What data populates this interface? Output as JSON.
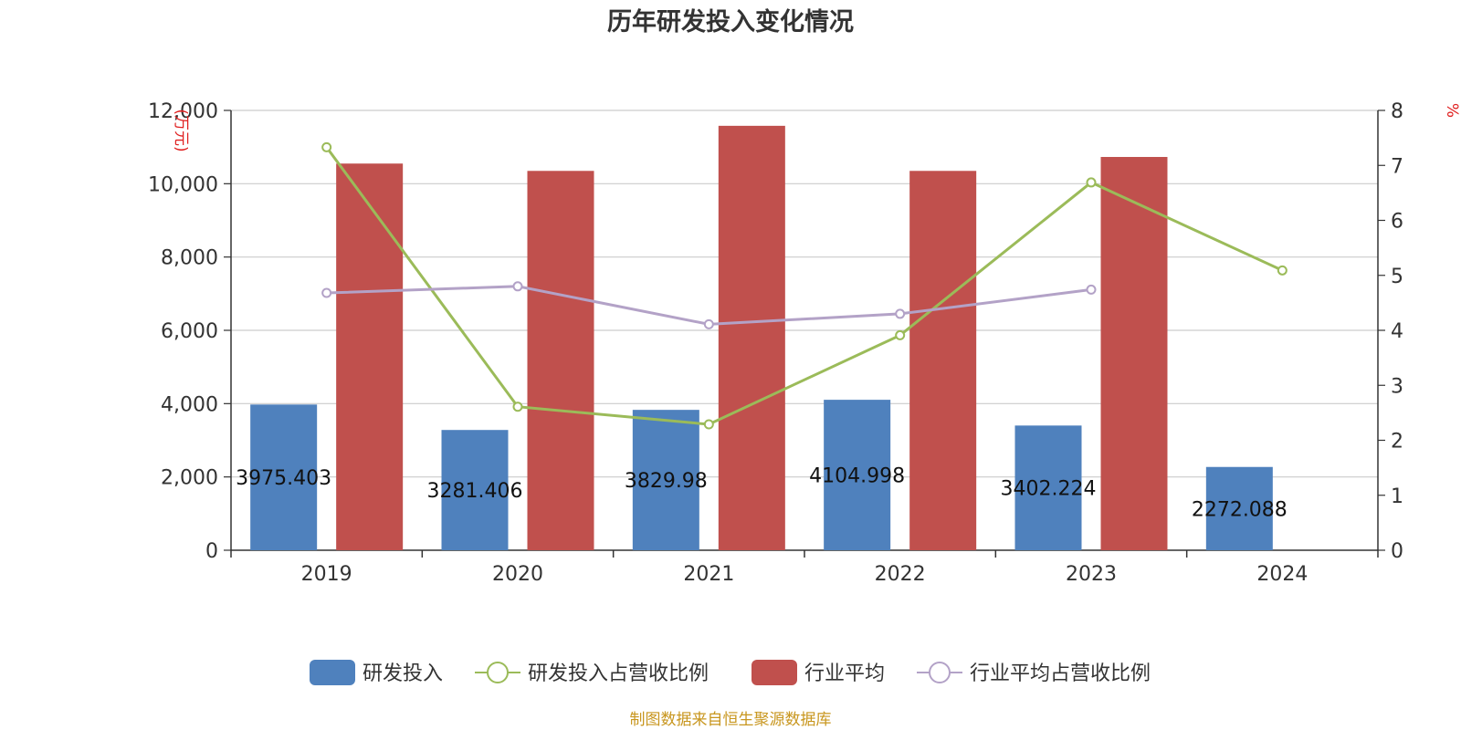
{
  "chart_data": {
    "type": "bar",
    "title": "历年研发投入变化情况",
    "categories": [
      "2019",
      "2020",
      "2021",
      "2022",
      "2023",
      "2024"
    ],
    "y_left": {
      "unit": "(万元)",
      "min": 0,
      "max": 12000,
      "ticks": [
        "0",
        "2,000",
        "4,000",
        "6,000",
        "8,000",
        "10,000",
        "12,000"
      ]
    },
    "y_right": {
      "unit": "%",
      "min": 0,
      "max": 8,
      "ticks": [
        "0",
        "1",
        "2",
        "3",
        "4",
        "5",
        "6",
        "7",
        "8"
      ]
    },
    "grid": true,
    "legend_position": "bottom",
    "series": [
      {
        "name": "研发投入",
        "kind": "bar",
        "axis": "left",
        "color": "#4f81bd",
        "values": [
          3975.403,
          3281.406,
          3829.98,
          4104.998,
          3402.224,
          2272.088
        ],
        "labels": [
          "3975.403",
          "3281.406",
          "3829.98",
          "4104.998",
          "3402.224",
          "2272.088"
        ]
      },
      {
        "name": "研发投入占营收比例",
        "kind": "line",
        "axis": "right",
        "color": "#9bbb59",
        "values": [
          7.33,
          2.61,
          2.29,
          3.91,
          6.69,
          5.09
        ]
      },
      {
        "name": "行业平均",
        "kind": "bar",
        "axis": "left",
        "color": "#c0504d",
        "values": [
          10550,
          10350,
          11580,
          10350,
          10730,
          null
        ]
      },
      {
        "name": "行业平均占营收比例",
        "kind": "line",
        "axis": "right",
        "color": "#b3a2c7",
        "values": [
          4.68,
          4.8,
          4.11,
          4.3,
          4.74,
          null
        ]
      }
    ],
    "source": "制图数据来自恒生聚源数据库"
  }
}
